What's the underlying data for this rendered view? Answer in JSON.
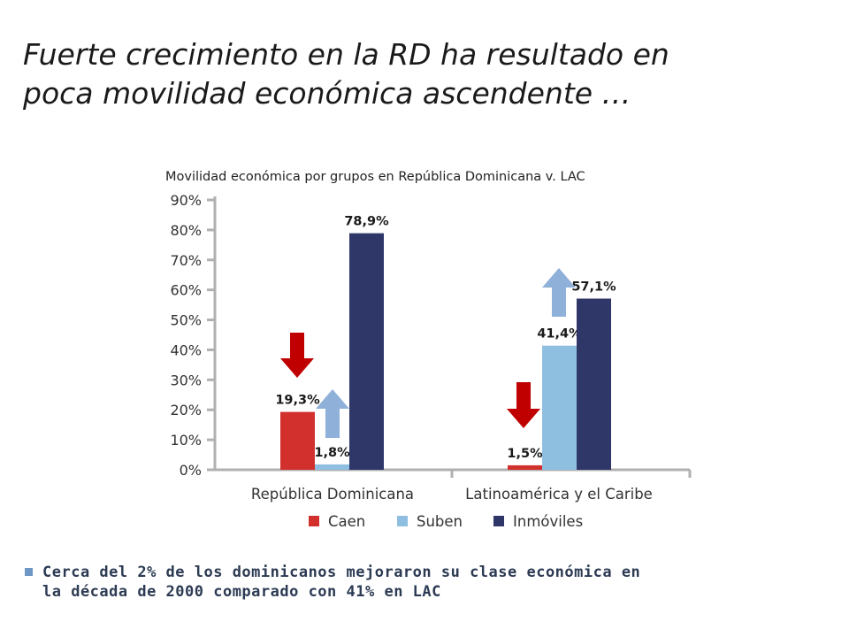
{
  "slide": {
    "title_line1": "Fuerte crecimiento en la RD ha resultado en",
    "title_line2": "poca movilidad económica ascendente …"
  },
  "chart_data": {
    "type": "bar",
    "title": "Movilidad económica por grupos en República Dominicana v. LAC",
    "categories": [
      "República Dominicana",
      "Latinoamérica y el Caribe"
    ],
    "series": [
      {
        "name": "Caen",
        "values": [
          19.3,
          1.5
        ],
        "labels": [
          "19,3%",
          "1,5%"
        ],
        "color": "#d2302d"
      },
      {
        "name": "Suben",
        "values": [
          1.8,
          41.4
        ],
        "labels": [
          "1,8%",
          "41,4%"
        ],
        "color": "#8fbfe0"
      },
      {
        "name": "Inmóviles",
        "values": [
          78.9,
          57.1
        ],
        "labels": [
          "78,9%",
          "57,1%"
        ],
        "color": "#2f3668"
      }
    ],
    "ylim": [
      0,
      90
    ],
    "yticks": [
      0,
      10,
      20,
      30,
      40,
      50,
      60,
      70,
      80,
      90
    ],
    "ytick_labels": [
      "0%",
      "10%",
      "20%",
      "30%",
      "40%",
      "50%",
      "60%",
      "70%",
      "80%",
      "90%"
    ],
    "legend_position": "bottom",
    "annotations": [
      {
        "type": "arrow-down",
        "group": 0,
        "series": 0,
        "color": "#c00000"
      },
      {
        "type": "arrow-up",
        "group": 0,
        "series": 1,
        "color": "#8fb0d9"
      },
      {
        "type": "arrow-down",
        "group": 1,
        "series": 0,
        "color": "#c00000"
      },
      {
        "type": "arrow-up",
        "group": 1,
        "series": 1,
        "color": "#8fb0d9"
      }
    ]
  },
  "bullet": {
    "line1": "Cerca del 2% de los dominicanos mejoraron su clase económica en",
    "line2": "la década de 2000 comparado con 41% en LAC"
  },
  "colors": {
    "title_text": "#1a1a1a",
    "bullet_text": "#2c3a53",
    "bullet_marker": "#6f97c6",
    "axis": "#b0b0b0"
  }
}
